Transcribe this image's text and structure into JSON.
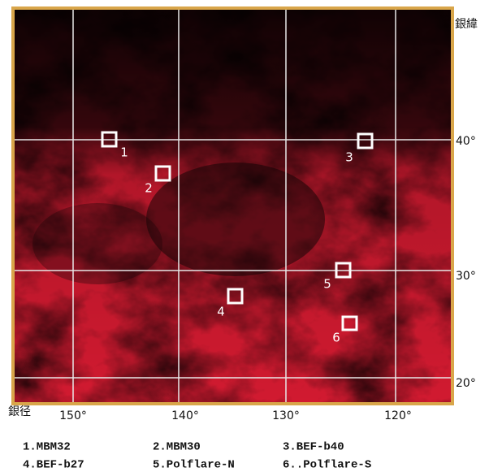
{
  "map": {
    "axis_labels": {
      "latitude": "銀緯",
      "longitude": "銀径"
    },
    "longitude_ticks": [
      "150°",
      "140°",
      "130°",
      "120°"
    ],
    "latitude_ticks": [
      "40°",
      "30°",
      "20°"
    ],
    "markers": [
      "1",
      "2",
      "3",
      "4",
      "5",
      "6"
    ],
    "legend": [
      "1.MBM32",
      "2.MBM30",
      "3.BEF-b40",
      "4.BEF-b27",
      "5.Polflare-N",
      "6..Polflare-S"
    ]
  }
}
